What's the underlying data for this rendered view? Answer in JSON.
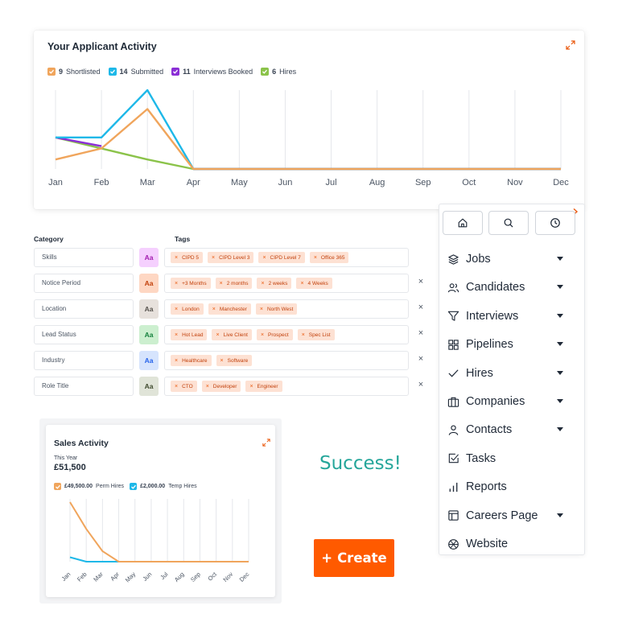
{
  "activity": {
    "title": "Your Applicant Activity",
    "legend": [
      {
        "count": "9",
        "label": "Shortlisted",
        "color": "#f0a55c"
      },
      {
        "count": "14",
        "label": "Submitted",
        "color": "#1eb8e8"
      },
      {
        "count": "11",
        "label": "Interviews Booked",
        "color": "#8b2fd6"
      },
      {
        "count": "6",
        "label": "Hires",
        "color": "#8bc34a"
      }
    ]
  },
  "chart_data": [
    {
      "type": "line",
      "categories": [
        "Jan",
        "Feb",
        "Mar",
        "Apr",
        "May",
        "Jun",
        "Jul",
        "Aug",
        "Sep",
        "Oct",
        "Nov",
        "Dec"
      ],
      "series": [
        {
          "name": "Hires",
          "color": "#8bc34a",
          "values": [
            4,
            2.6,
            1.2,
            0,
            0,
            0,
            0,
            0,
            0,
            0,
            0,
            0
          ]
        },
        {
          "name": "Interviews Booked",
          "color": "#8b2fd6",
          "values": [
            4,
            2.9,
            null,
            0,
            0,
            0,
            0,
            0,
            0,
            0,
            0,
            0
          ]
        },
        {
          "name": "Submitted",
          "color": "#1eb8e8",
          "values": [
            4,
            4,
            10,
            0,
            0,
            0,
            0,
            0,
            0,
            0,
            0,
            0
          ]
        },
        {
          "name": "Shortlisted",
          "color": "#f0a55c",
          "values": [
            1.2,
            2.6,
            7.6,
            0,
            0,
            0,
            0,
            0,
            0,
            0,
            0,
            0
          ]
        }
      ],
      "ylim": [
        0,
        10
      ]
    },
    {
      "type": "line",
      "categories": [
        "Jan",
        "Feb",
        "Mar",
        "Apr",
        "May",
        "Jun",
        "Jul",
        "Aug",
        "Sep",
        "Oct",
        "Nov",
        "Dec"
      ],
      "series": [
        {
          "name": "Temp Hires",
          "color": "#1eb8e8",
          "values": [
            1.5,
            0,
            0,
            0,
            0,
            0,
            0,
            0,
            0,
            0,
            0,
            0
          ]
        },
        {
          "name": "Perm Hires",
          "color": "#f0a55c",
          "values": [
            20,
            11,
            3.5,
            0,
            0,
            0,
            0,
            0,
            0,
            0,
            0,
            0
          ]
        }
      ],
      "ylim": [
        0,
        20
      ]
    }
  ],
  "table": {
    "category_header": "Category",
    "tags_header": "Tags",
    "rows": [
      {
        "category": "Skills",
        "badge": "Aa",
        "badge_bg": "#f5d0fe",
        "badge_fg": "#a21caf",
        "tags": [
          "CIPD 5",
          "CIPD Level 3",
          "CIPD Level 7",
          "Office 365"
        ],
        "removable": false
      },
      {
        "category": "Notice Period",
        "badge": "Aa",
        "badge_bg": "#fed7c3",
        "badge_fg": "#c2410c",
        "tags": [
          "+3 Months",
          "2 months",
          "2 weeks",
          "4 Weeks"
        ],
        "removable": true
      },
      {
        "category": "Location",
        "badge": "Aa",
        "badge_bg": "#e7e1dc",
        "badge_fg": "#57534e",
        "tags": [
          "London",
          "Manchester",
          "North West"
        ],
        "removable": true
      },
      {
        "category": "Lead Status",
        "badge": "Aa",
        "badge_bg": "#ccefcf",
        "badge_fg": "#15803d",
        "tags": [
          "Hot Lead",
          "Live Client",
          "Prospect",
          "Spec List"
        ],
        "removable": true
      },
      {
        "category": "Industry",
        "badge": "Aa",
        "badge_bg": "#d6e4fd",
        "badge_fg": "#2563eb",
        "tags": [
          "Healthcare",
          "Software"
        ],
        "removable": true
      },
      {
        "category": "Role Title",
        "badge": "Aa",
        "badge_bg": "#e0e4d8",
        "badge_fg": "#3f4a2e",
        "tags": [
          "CTO",
          "Developer",
          "Engineer"
        ],
        "removable": true
      }
    ],
    "remove_glyph": "×",
    "tag_remove_glyph": "×"
  },
  "nav": {
    "top_buttons": [
      "home-icon",
      "search-icon",
      "clock-icon"
    ],
    "items": [
      {
        "label": "Jobs",
        "icon": "layers-icon",
        "caret": true
      },
      {
        "label": "Candidates",
        "icon": "users-icon",
        "caret": true
      },
      {
        "label": "Interviews",
        "icon": "filter-icon",
        "caret": true
      },
      {
        "label": "Pipelines",
        "icon": "grid-icon",
        "caret": true
      },
      {
        "label": "Hires",
        "icon": "check-icon",
        "caret": true
      },
      {
        "label": "Companies",
        "icon": "briefcase-icon",
        "caret": true
      },
      {
        "label": "Contacts",
        "icon": "user-icon",
        "caret": true
      },
      {
        "label": "Tasks",
        "icon": "checkbox-icon",
        "caret": false
      },
      {
        "label": "Reports",
        "icon": "bar-chart-icon",
        "caret": false
      },
      {
        "label": "Careers Page",
        "icon": "layout-icon",
        "caret": true
      },
      {
        "label": "Website",
        "icon": "globe-icon",
        "caret": false
      }
    ]
  },
  "sales": {
    "title": "Sales Activity",
    "period": "This Year",
    "total": "£51,500",
    "legend": [
      {
        "amount": "£49,500.00",
        "label": "Perm Hires",
        "color": "#f0a55c"
      },
      {
        "amount": "£2,000.00",
        "label": "Temp Hires",
        "color": "#1eb8e8"
      }
    ]
  },
  "success_text": "Success!",
  "create_button": {
    "plus": "+",
    "label": "Create"
  },
  "colors": {
    "accent": "#ff5a00",
    "success": "#26a69a"
  }
}
